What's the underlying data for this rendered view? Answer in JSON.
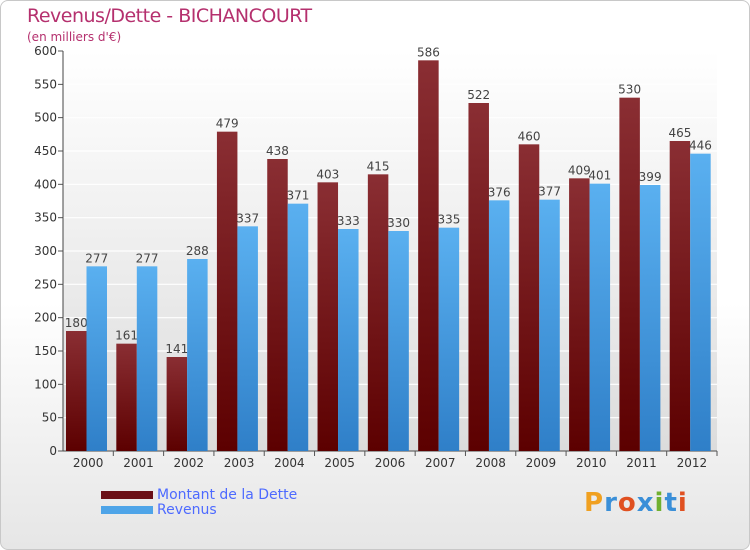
{
  "header": {
    "title": "Revenus/Dette - BICHANCOURT",
    "subtitle": "(en milliers d'€)"
  },
  "colors": {
    "dette": "#7a1e22",
    "revenus": "#4ea4e8",
    "title": "#b5306e",
    "legend_text": "#4d6aff"
  },
  "logo": "Proxiti",
  "chart_data": {
    "type": "bar",
    "title": "Revenus/Dette - BICHANCOURT",
    "subtitle": "(en milliers d'€)",
    "categories": [
      "2000",
      "2001",
      "2002",
      "2003",
      "2004",
      "2005",
      "2006",
      "2007",
      "2008",
      "2009",
      "2010",
      "2011",
      "2012"
    ],
    "series": [
      {
        "name": "Montant de la Dette",
        "values": [
          180,
          161,
          141,
          479,
          438,
          403,
          415,
          586,
          522,
          460,
          409,
          530,
          465
        ]
      },
      {
        "name": "Revenus",
        "values": [
          277,
          277,
          288,
          337,
          371,
          333,
          330,
          335,
          376,
          377,
          401,
          399,
          446
        ]
      }
    ],
    "ylim": [
      0,
      600
    ],
    "yticks": [
      0,
      50,
      100,
      150,
      200,
      250,
      300,
      350,
      400,
      450,
      500,
      550,
      600
    ],
    "grid": true,
    "legend_position": "bottom-left"
  }
}
